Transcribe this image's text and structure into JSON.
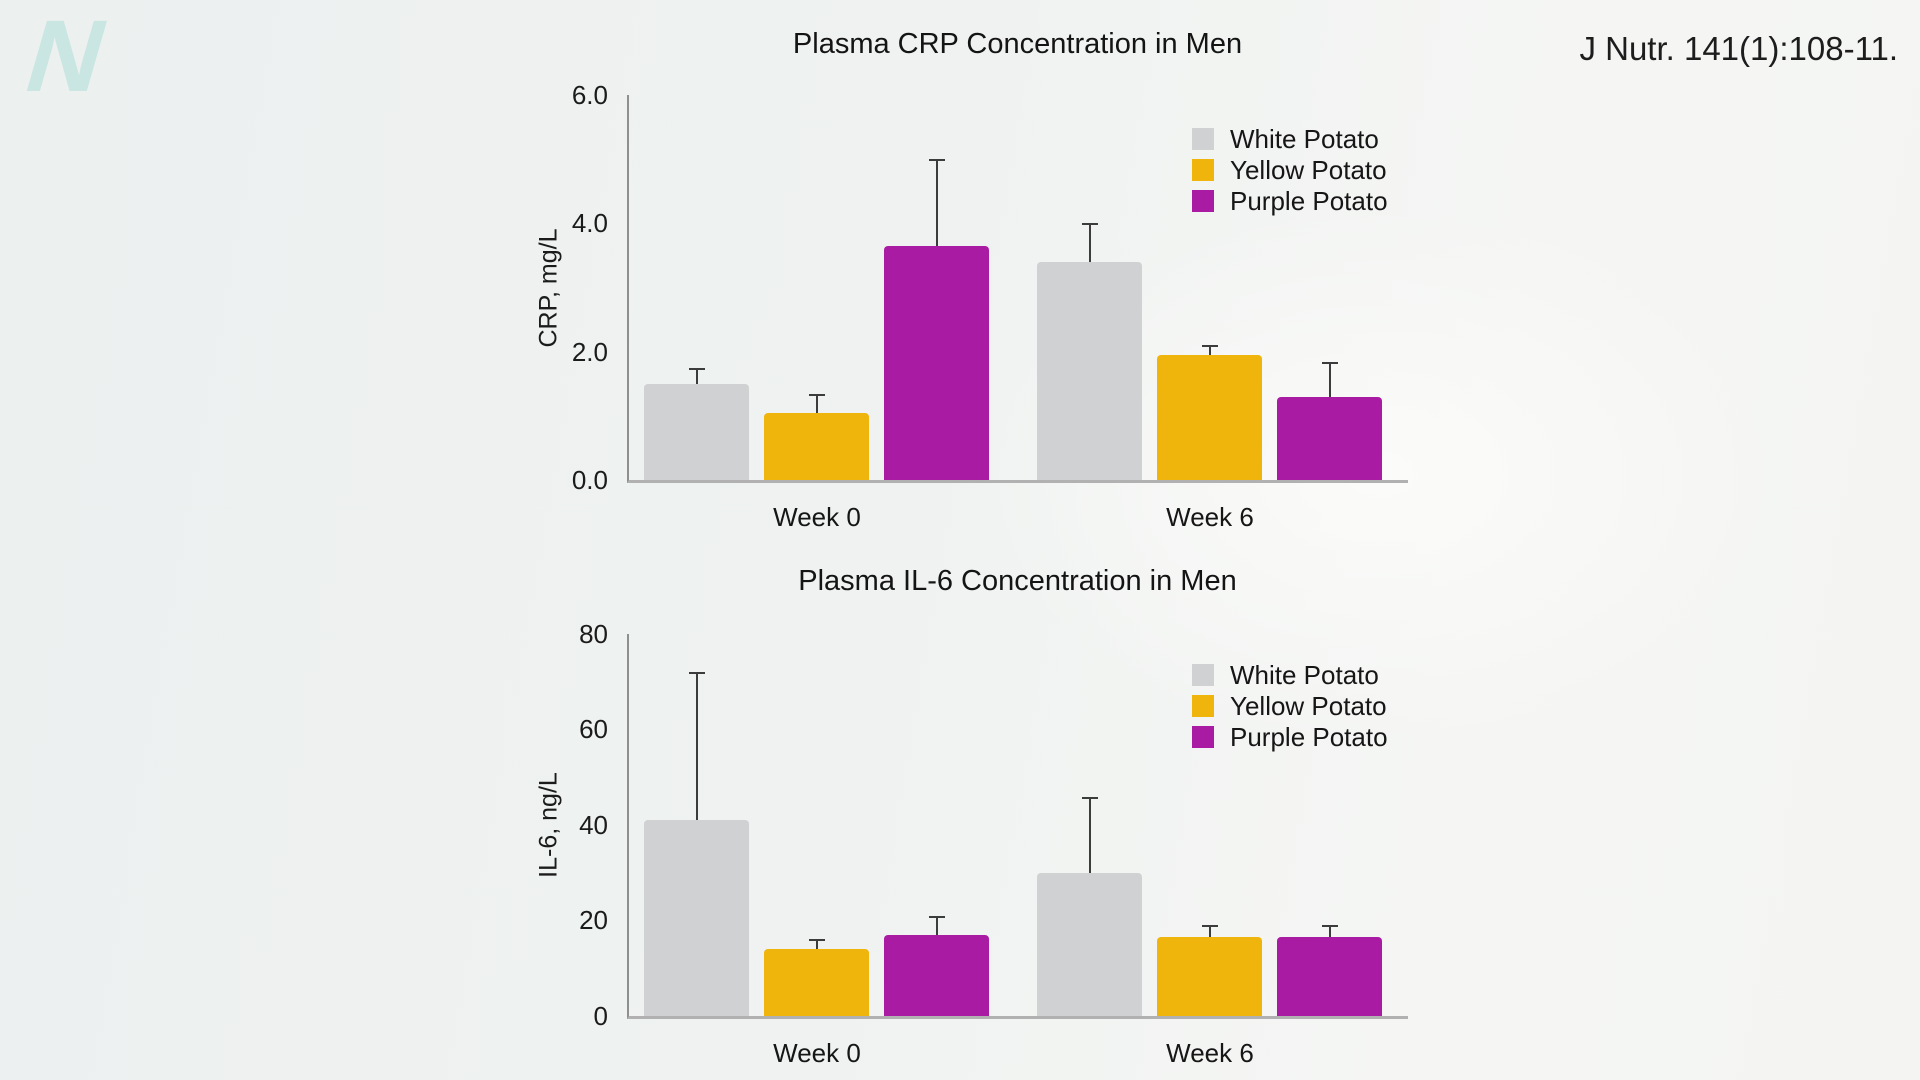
{
  "page": {
    "logo_letter": "N",
    "citation": "J Nutr. 141(1):108-11.",
    "colors": {
      "white_potato": "#cfd1d2",
      "yellow_potato": "#f0b50c",
      "purple_potato": "#aa1ba4",
      "error_bar": "#3c3c3c",
      "axis": "#8f8f8f",
      "logo_teal": "#c9e6e2"
    }
  },
  "chart_data": [
    {
      "type": "bar",
      "title": "Plasma CRP Concentration in Men",
      "xlabel": "",
      "ylabel": "CRP, mg/L",
      "categories": [
        "Week 0",
        "Week 6"
      ],
      "series": [
        {
          "name": "White Potato",
          "color": "#cfd1d2",
          "values": [
            1.5,
            3.4
          ],
          "errors": [
            0.25,
            0.6
          ]
        },
        {
          "name": "Yellow Potato",
          "color": "#f0b50c",
          "values": [
            1.05,
            1.95
          ],
          "errors": [
            0.3,
            0.15
          ]
        },
        {
          "name": "Purple Potato",
          "color": "#aa1ba4",
          "values": [
            3.65,
            1.3
          ],
          "errors": [
            1.35,
            0.55
          ]
        }
      ],
      "ylim": [
        0,
        6
      ],
      "yticks": [
        "0.0",
        "2.0",
        "4.0",
        "6.0"
      ],
      "ytick_values": [
        0,
        2,
        4,
        6
      ],
      "grid": false,
      "legend_position": "top-right",
      "error_bars": "upper only"
    },
    {
      "type": "bar",
      "title": "Plasma IL-6 Concentration in Men",
      "xlabel": "",
      "ylabel": "IL-6, ng/L",
      "categories": [
        "Week 0",
        "Week 6"
      ],
      "series": [
        {
          "name": "White Potato",
          "color": "#cfd1d2",
          "values": [
            41,
            30
          ],
          "errors": [
            31,
            16
          ]
        },
        {
          "name": "Yellow Potato",
          "color": "#f0b50c",
          "values": [
            14,
            16.5
          ],
          "errors": [
            2,
            2.5
          ]
        },
        {
          "name": "Purple Potato",
          "color": "#aa1ba4",
          "values": [
            17,
            16.5
          ],
          "errors": [
            4,
            2.5
          ]
        }
      ],
      "ylim": [
        0,
        80
      ],
      "yticks": [
        "0",
        "20",
        "40",
        "60",
        "80"
      ],
      "ytick_values": [
        0,
        20,
        40,
        60,
        80
      ],
      "grid": false,
      "legend_position": "top-right",
      "error_bars": "upper only"
    }
  ]
}
